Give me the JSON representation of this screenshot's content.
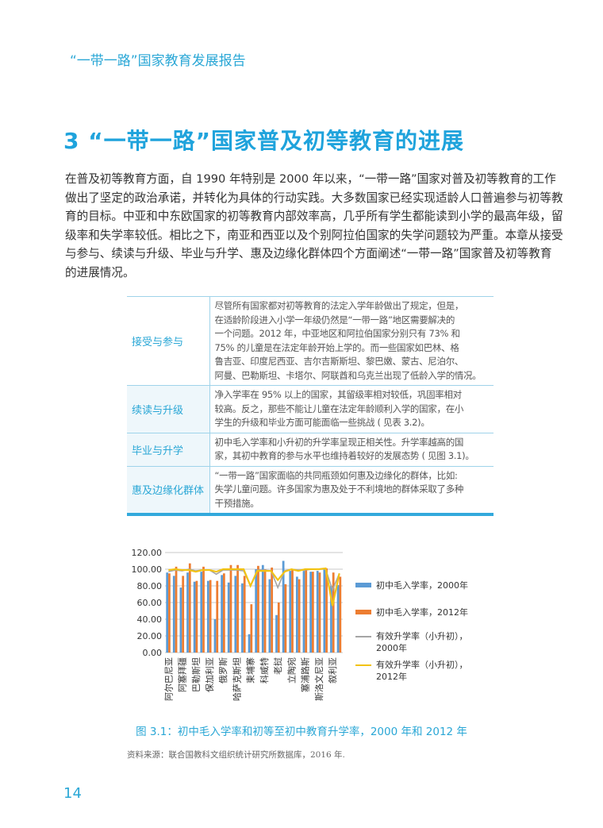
{
  "header": {
    "running_title": "“一带一路”国家教育发展报告"
  },
  "section": {
    "title": "3 “一带一路”国家普及初等教育的进展"
  },
  "body_lines": [
    "在普及初等教育方面，自 1990 年特别是 2000 年以来，“一带一路”国家对普及初等教育的工作",
    "做出了坚定的政治承诺，并转化为具体的行动实践。大多数国家已经实现适龄人口普遍参与初等教",
    "育的目标。中亚和中东欧国家的初等教育内部效率高，几乎所有学生都能读到小学的最高年级，留",
    "级率和失学率较低。相比之下，南亚和西亚以及个别阿拉伯国家的失学问题较为严重。本章从接受",
    "与参与、续读与升级、毕业与升学、惠及边缘化群体四个方面阐述“一带一路”国家普及初等教育",
    "的进展情况。"
  ],
  "table": [
    {
      "label": "接受与参与",
      "lines": [
        "尽管所有国家都对初等教育的法定入学年龄做出了规定，但是，",
        "在适龄阶段进入小学一年级仍然是“一带一路”地区需要解决的",
        "一个问题。2012 年，中亚地区和阿拉伯国家分别只有 73% 和",
        "75% 的儿童是在法定年龄开始上学的。而一些国家如巴林、格",
        "鲁吉亚、印度尼西亚、吉尔吉斯斯坦、黎巴嫩、蒙古、尼泊尔、",
        "阿曼、巴勒斯坦、卡塔尔、阿联酋和乌克兰出现了低龄入学的情况。"
      ]
    },
    {
      "label": "续读与升级",
      "lines": [
        "净入学率在 95% 以上的国家，其留级率相对较低，巩固率相对",
        "较高。反之，那些不能让儿童在法定年龄顺利入学的国家，在小",
        "学生的升级和毕业方面可能面临一些挑战 ( 见表 3.2)。"
      ]
    },
    {
      "label": "毕业与升学",
      "lines": [
        "初中毛入学率和小升初的升学率呈现正相关性。升学率越高的国",
        "家，其初中教育的参与水平也维持着较好的发展态势 ( 见图 3.1)。"
      ]
    },
    {
      "label": "惠及边缘化群体",
      "lines": [
        "“一带一路”国家面临的共同瓶颈如何惠及边缘化的群体，比如:",
        "失学儿童问题。许多国家为惠及处于不利境地的群体采取了多种",
        "干预措施。"
      ]
    }
  ],
  "chart_data": {
    "type": "bar",
    "title": "",
    "ylim": [
      0,
      120
    ],
    "yticks": [
      "0.00",
      "20.00",
      "40.00",
      "60.00",
      "80.00",
      "100.00",
      "120.00"
    ],
    "grid": true,
    "legend_position": "right",
    "categories": [
      "阿尔巴尼亚",
      "",
      "阿塞拜疆",
      "",
      "巴勒斯坦",
      "",
      "保加利亚",
      "",
      "俄罗斯",
      "",
      "哈萨克斯坦",
      "",
      "柬埔寨",
      "",
      "科威特",
      "",
      "老挝",
      "",
      "立陶宛",
      "",
      "塞浦路斯",
      "",
      "斯洛文尼亚",
      "",
      "叙利亚",
      ""
    ],
    "series": [
      {
        "name": "初中毛入学率，2000年",
        "kind": "bar",
        "color": "#5b9bd5",
        "values": [
          96,
          92,
          78,
          96,
          85,
          97,
          86,
          40,
          93,
          84,
          92,
          83,
          22,
          100,
          105,
          88,
          45,
          110,
          98,
          91,
          98,
          97,
          98,
          100,
          80,
          81
        ]
      },
      {
        "name": "初中毛入学率，2012年",
        "kind": "bar",
        "color": "#ed7d31",
        "values": [
          95,
          103,
          92,
          107,
          86,
          103,
          87,
          86,
          95,
          105,
          105,
          92,
          58,
          104,
          100,
          102,
          60,
          82,
          100,
          88,
          100,
          97,
          96,
          101,
          96,
          91
        ]
      },
      {
        "name": "有效升学率（小升初），2000年",
        "kind": "line",
        "color": "#a5a5a5",
        "values": [
          97,
          99,
          98,
          100,
          98,
          99,
          99,
          94,
          99,
          99,
          99,
          98,
          80,
          99,
          99,
          98,
          78,
          98,
          100,
          99,
          99,
          100,
          100,
          100,
          75,
          95
        ]
      },
      {
        "name": "有效升学率（小升初），2012年",
        "kind": "line",
        "color": "#f2c314",
        "values": [
          99,
          100,
          99,
          99,
          97,
          99,
          99,
          97,
          100,
          100,
          100,
          100,
          80,
          98,
          98,
          98,
          87,
          97,
          100,
          98,
          100,
          100,
          100,
          101,
          56,
          95
        ]
      }
    ]
  },
  "legend": {
    "items": [
      "初中毛入学率，2000年",
      "初中毛入学率，2012年",
      "有效升学率（小升初），",
      "有效升学率（小升初），"
    ],
    "items_line2": [
      "",
      "",
      "2000年",
      "2012年"
    ]
  },
  "caption": "图 3.1：初中毛入学率和初等至初中教育升学率，2000 年和 2012 年",
  "source": "资料来源：联合国教科文组织统计研究所数据库，2016 年.",
  "page_number": "14"
}
